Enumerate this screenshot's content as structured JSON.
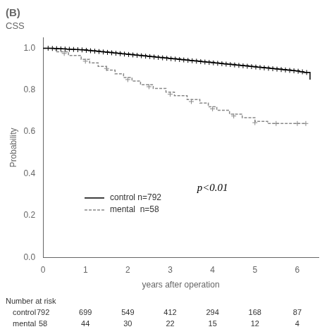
{
  "chart_data": {
    "type": "line",
    "title": "(B)",
    "subtitle": "CSS",
    "x_label": "years after operation",
    "y_label": "Probability",
    "xlim": [
      0,
      6.5
    ],
    "ylim": [
      0.0,
      1.05
    ],
    "xticks": [
      0,
      1,
      2,
      3,
      4,
      5,
      6
    ],
    "yticks": [
      {
        "value": 0.0,
        "label": "0.0"
      },
      0.2,
      0.4,
      0.6,
      0.8,
      {
        "value": 1.0,
        "label": "1.0"
      }
    ],
    "grid": false,
    "legend": "lower left",
    "series": [
      {
        "name": "control n=792",
        "color": "#000000",
        "line_style": "solid",
        "marker": "plus",
        "x": [
          0,
          0.08,
          0.15,
          0.25,
          0.35,
          0.45,
          0.55,
          0.65,
          0.75,
          0.85,
          0.95,
          1.05,
          1.15,
          1.25,
          1.35,
          1.45,
          1.55,
          1.65,
          1.75,
          1.85,
          1.95,
          2.05,
          2.15,
          2.25,
          2.35,
          2.45,
          2.55,
          2.65,
          2.75,
          2.85,
          2.95,
          3.05,
          3.15,
          3.25,
          3.35,
          3.45,
          3.55,
          3.65,
          3.75,
          3.85,
          3.95,
          4.05,
          4.15,
          4.25,
          4.35,
          4.45,
          4.55,
          4.65,
          4.75,
          4.85,
          4.95,
          5.05,
          5.15,
          5.25,
          5.35,
          5.45,
          5.55,
          5.65,
          5.75,
          5.85,
          5.95,
          6.05,
          6.15,
          6.3
        ],
        "values": [
          1.0,
          1.0,
          1.0,
          0.999,
          0.998,
          0.997,
          0.996,
          0.995,
          0.994,
          0.993,
          0.992,
          0.99,
          0.988,
          0.986,
          0.984,
          0.982,
          0.98,
          0.978,
          0.976,
          0.974,
          0.972,
          0.97,
          0.968,
          0.966,
          0.964,
          0.962,
          0.96,
          0.958,
          0.956,
          0.954,
          0.952,
          0.95,
          0.948,
          0.946,
          0.944,
          0.942,
          0.94,
          0.938,
          0.936,
          0.934,
          0.932,
          0.93,
          0.928,
          0.926,
          0.924,
          0.922,
          0.92,
          0.918,
          0.916,
          0.914,
          0.912,
          0.91,
          0.908,
          0.906,
          0.904,
          0.902,
          0.9,
          0.898,
          0.896,
          0.894,
          0.892,
          0.888,
          0.884,
          0.85
        ],
        "censor_x": [
          0.12,
          0.22,
          0.32,
          0.42,
          0.52,
          0.62,
          0.72,
          0.82,
          0.92,
          1.02,
          1.12,
          1.22,
          1.32,
          1.42,
          1.52,
          1.62,
          1.72,
          1.82,
          1.92,
          2.02,
          2.12,
          2.22,
          2.32,
          2.42,
          2.52,
          2.62,
          2.72,
          2.82,
          2.92,
          3.02,
          3.12,
          3.22,
          3.32,
          3.42,
          3.52,
          3.62,
          3.72,
          3.82,
          3.92,
          4.02,
          4.12,
          4.22,
          4.32,
          4.42,
          4.52,
          4.62,
          4.72,
          4.82,
          4.92,
          5.02,
          5.12,
          5.22,
          5.32,
          5.42,
          5.52,
          5.62,
          5.72,
          5.82,
          5.92,
          6.02,
          6.12,
          6.22
        ],
        "censor_y": [
          1.0,
          0.999,
          0.998,
          0.997,
          0.996,
          0.995,
          0.994,
          0.993,
          0.992,
          0.99,
          0.988,
          0.986,
          0.984,
          0.982,
          0.98,
          0.978,
          0.976,
          0.974,
          0.972,
          0.97,
          0.968,
          0.966,
          0.964,
          0.962,
          0.96,
          0.958,
          0.956,
          0.954,
          0.952,
          0.95,
          0.948,
          0.946,
          0.944,
          0.942,
          0.94,
          0.938,
          0.936,
          0.934,
          0.932,
          0.93,
          0.928,
          0.926,
          0.924,
          0.922,
          0.92,
          0.918,
          0.916,
          0.914,
          0.912,
          0.91,
          0.908,
          0.906,
          0.904,
          0.902,
          0.9,
          0.898,
          0.896,
          0.894,
          0.892,
          0.89,
          0.887,
          0.884
        ]
      },
      {
        "name": "mental  n=58",
        "color": "#888888",
        "line_style": "dashed",
        "marker": "plus",
        "x": [
          0,
          0.3,
          0.6,
          0.9,
          1.1,
          1.3,
          1.5,
          1.7,
          1.9,
          2.1,
          2.3,
          2.6,
          2.9,
          3.1,
          3.4,
          3.7,
          3.9,
          4.1,
          4.4,
          4.7,
          5.0,
          5.3,
          5.6,
          5.9,
          6.2
        ],
        "values": [
          1.0,
          0.983,
          0.965,
          0.947,
          0.93,
          0.913,
          0.895,
          0.878,
          0.86,
          0.843,
          0.825,
          0.808,
          0.79,
          0.773,
          0.755,
          0.738,
          0.72,
          0.703,
          0.685,
          0.668,
          0.65,
          0.64,
          0.64,
          0.64,
          0.64
        ],
        "censor_x": [
          0.5,
          1.0,
          1.5,
          2.0,
          2.5,
          3.0,
          3.5,
          4.0,
          4.5,
          5.0,
          5.5,
          6.0,
          6.2
        ],
        "censor_y": [
          0.975,
          0.938,
          0.903,
          0.85,
          0.816,
          0.78,
          0.745,
          0.71,
          0.676,
          0.644,
          0.64,
          0.64,
          0.64
        ]
      }
    ],
    "annotations": [
      {
        "text": "p<0.01",
        "x": 4.0,
        "y": 0.33
      }
    ],
    "number_at_risk": {
      "label": "Number at risk",
      "times": [
        0,
        1,
        2,
        3,
        4,
        5,
        6
      ],
      "rows": [
        {
          "name": "control",
          "values": [
            792,
            699,
            549,
            412,
            294,
            168,
            87
          ]
        },
        {
          "name": "mental",
          "values": [
            58,
            44,
            30,
            22,
            15,
            12,
            4
          ]
        }
      ]
    }
  }
}
